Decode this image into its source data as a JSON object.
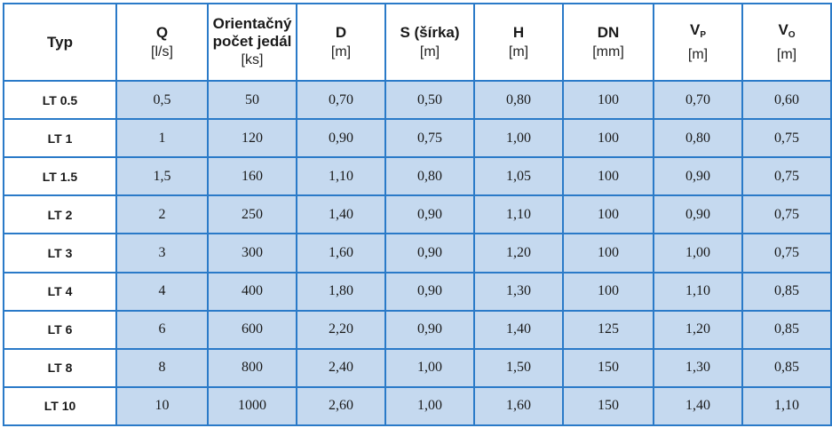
{
  "table": {
    "headers": [
      {
        "title": "Typ",
        "sub": "",
        "unit": ""
      },
      {
        "title": "Q",
        "sub": "",
        "unit": "[l/s]"
      },
      {
        "title": "Orientačný počet jedál",
        "sub": "",
        "unit": "[ks]"
      },
      {
        "title": "D",
        "sub": "",
        "unit": "[m]"
      },
      {
        "title": "S (šírka)",
        "sub": "",
        "unit": "[m]"
      },
      {
        "title": "H",
        "sub": "",
        "unit": "[m]"
      },
      {
        "title": "DN",
        "sub": "",
        "unit": "[mm]"
      },
      {
        "title": "V",
        "sub": "P",
        "unit": "[m]"
      },
      {
        "title": "V",
        "sub": "O",
        "unit": "[m]"
      }
    ],
    "rows": [
      [
        "LT 0.5",
        "0,5",
        "50",
        "0,70",
        "0,50",
        "0,80",
        "100",
        "0,70",
        "0,60"
      ],
      [
        "LT 1",
        "1",
        "120",
        "0,90",
        "0,75",
        "1,00",
        "100",
        "0,80",
        "0,75"
      ],
      [
        "LT 1.5",
        "1,5",
        "160",
        "1,10",
        "0,80",
        "1,05",
        "100",
        "0,90",
        "0,75"
      ],
      [
        "LT 2",
        "2",
        "250",
        "1,40",
        "0,90",
        "1,10",
        "100",
        "0,90",
        "0,75"
      ],
      [
        "LT 3",
        "3",
        "300",
        "1,60",
        "0,90",
        "1,20",
        "100",
        "1,00",
        "0,75"
      ],
      [
        "LT 4",
        "4",
        "400",
        "1,80",
        "0,90",
        "1,30",
        "100",
        "1,10",
        "0,85"
      ],
      [
        "LT 6",
        "6",
        "600",
        "2,20",
        "0,90",
        "1,40",
        "125",
        "1,20",
        "0,85"
      ],
      [
        "LT 8",
        "8",
        "800",
        "2,40",
        "1,00",
        "1,50",
        "150",
        "1,30",
        "0,85"
      ],
      [
        "LT 10",
        "10",
        "1000",
        "2,60",
        "1,00",
        "1,60",
        "150",
        "1,40",
        "1,10"
      ]
    ]
  },
  "colors": {
    "border": "#2a7ac8",
    "cell_fill": "#c5d9ef",
    "header_fill": "#ffffff"
  }
}
